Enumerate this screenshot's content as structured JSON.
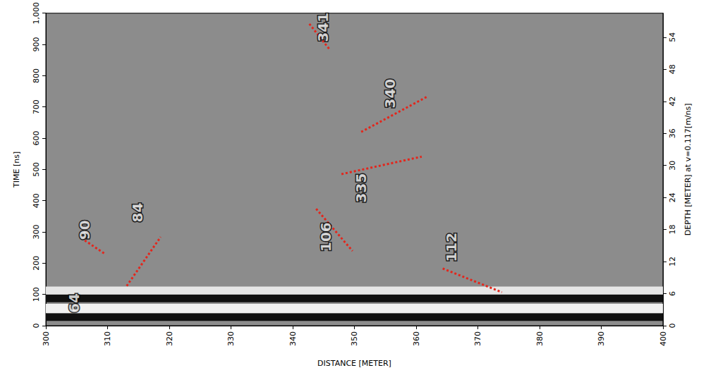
{
  "chart_data": {
    "type": "radargram",
    "x_label": "DISTANCE [METER]",
    "y_label": "TIME [ns]",
    "y2_label": "DEPTH [METER] at v=0.117[m/ns]",
    "xlim": [
      300,
      400
    ],
    "xticks": [
      300,
      310,
      320,
      330,
      340,
      350,
      360,
      370,
      380,
      390,
      400
    ],
    "ylim": [
      0,
      1000
    ],
    "yticks": [
      0,
      100,
      200,
      300,
      400,
      500,
      600,
      700,
      800,
      900,
      1000
    ],
    "y2lim": [
      0,
      58.5
    ],
    "y2ticks": [
      0,
      6,
      12,
      18,
      24,
      30,
      36,
      42,
      48,
      54
    ],
    "grid": false,
    "bands": [
      {
        "from": 15,
        "to": 40,
        "color": "#111111"
      },
      {
        "from": 40,
        "to": 70,
        "color": "#f2f2f2"
      },
      {
        "from": 75,
        "to": 100,
        "color": "#111111"
      },
      {
        "from": 100,
        "to": 125,
        "color": "#e6e6e6"
      }
    ],
    "color": "#e3261c",
    "line_style": "dotted",
    "annotations": [
      {
        "text": "64",
        "x": 304.6,
        "y": 72,
        "line": null
      },
      {
        "text": "90",
        "x": 306.3,
        "y": 306,
        "line": [
          [
            306.3,
            273
          ],
          [
            309.7,
            228
          ]
        ]
      },
      {
        "text": "84",
        "x": 314.9,
        "y": 362,
        "line": [
          [
            313.1,
            127
          ],
          [
            318.6,
            284
          ]
        ]
      },
      {
        "text": "106",
        "x": 345.4,
        "y": 284,
        "line": [
          [
            343.8,
            374
          ],
          [
            349.7,
            239
          ]
        ]
      },
      {
        "text": "112",
        "x": 365.7,
        "y": 251,
        "line": [
          [
            364.3,
            183
          ],
          [
            373.9,
            107
          ]
        ]
      },
      {
        "text": "335",
        "x": 351.1,
        "y": 441,
        "line": [
          [
            347.9,
            485
          ],
          [
            360.9,
            541
          ]
        ]
      },
      {
        "text": "340",
        "x": 355.8,
        "y": 743,
        "line": [
          [
            351.1,
            620
          ],
          [
            361.7,
            732
          ]
        ]
      },
      {
        "text": "341",
        "x": 344.9,
        "y": 955,
        "line": [
          [
            342.7,
            966
          ],
          [
            346.1,
            881
          ]
        ]
      }
    ]
  }
}
